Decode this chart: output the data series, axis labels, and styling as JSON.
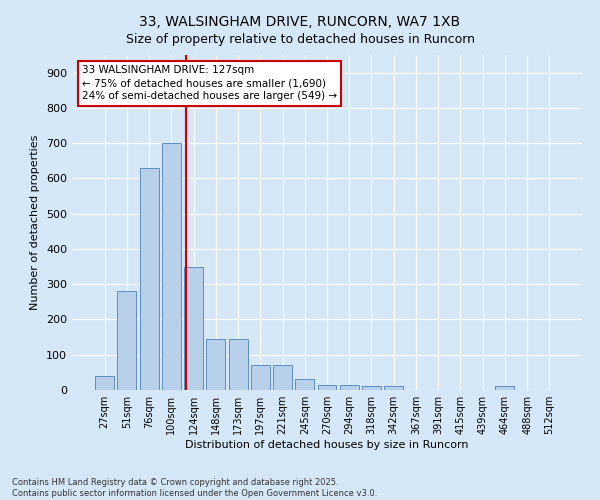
{
  "title": "33, WALSINGHAM DRIVE, RUNCORN, WA7 1XB",
  "subtitle": "Size of property relative to detached houses in Runcorn",
  "xlabel": "Distribution of detached houses by size in Runcorn",
  "ylabel": "Number of detached properties",
  "footer1": "Contains HM Land Registry data © Crown copyright and database right 2025.",
  "footer2": "Contains public sector information licensed under the Open Government Licence v3.0.",
  "categories": [
    "27sqm",
    "51sqm",
    "76sqm",
    "100sqm",
    "124sqm",
    "148sqm",
    "173sqm",
    "197sqm",
    "221sqm",
    "245sqm",
    "270sqm",
    "294sqm",
    "318sqm",
    "342sqm",
    "367sqm",
    "391sqm",
    "415sqm",
    "439sqm",
    "464sqm",
    "488sqm",
    "512sqm"
  ],
  "values": [
    40,
    280,
    630,
    700,
    350,
    145,
    145,
    70,
    70,
    30,
    15,
    15,
    10,
    10,
    0,
    0,
    0,
    0,
    10,
    0,
    0
  ],
  "bar_color": "#b8d0ea",
  "bar_edge_color": "#5b8ec4",
  "background_color": "#d6e8f7",
  "grid_color": "#ffffff",
  "annotation_line1": "33 WALSINGHAM DRIVE: 127sqm",
  "annotation_line2": "← 75% of detached houses are smaller (1,690)",
  "annotation_line3": "24% of semi-detached houses are larger (549) →",
  "annotation_box_facecolor": "#ffffff",
  "annotation_edge_color": "#cc0000",
  "red_line_color": "#cc0000",
  "ylim": [
    0,
    950
  ],
  "yticks": [
    0,
    100,
    200,
    300,
    400,
    500,
    600,
    700,
    800,
    900
  ],
  "title_fontsize": 10,
  "subtitle_fontsize": 9,
  "ylabel_fontsize": 8,
  "xlabel_fontsize": 8,
  "tick_fontsize": 7,
  "footer_fontsize": 6,
  "annotation_fontsize": 7.5
}
